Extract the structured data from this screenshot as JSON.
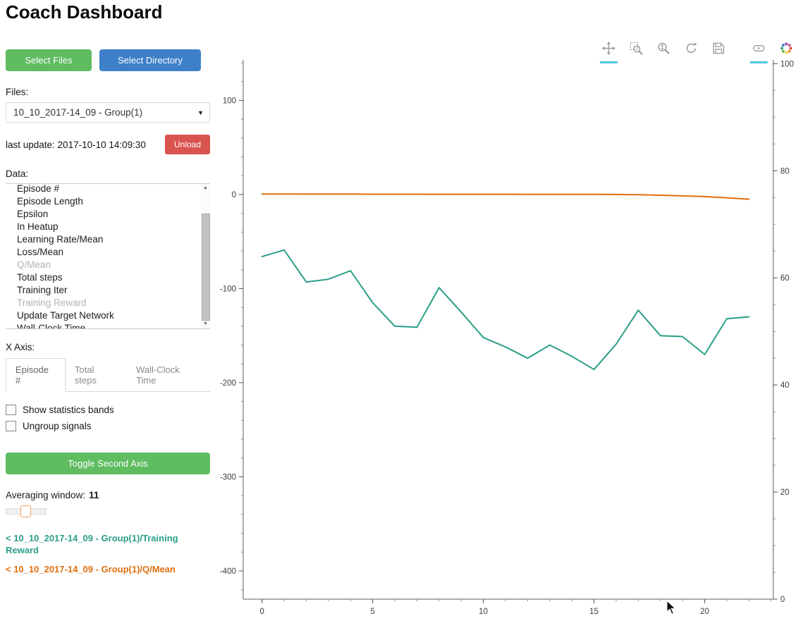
{
  "page": {
    "title": "Coach Dashboard"
  },
  "sidebar": {
    "buttons": {
      "select_files": "Select Files",
      "select_directory": "Select Directory",
      "unload": "Unload",
      "toggle_second_axis": "Toggle Second Axis"
    },
    "files": {
      "label": "Files:",
      "selected": "10_10_2017-14_09 - Group(1)"
    },
    "last_update": "last update: 2017-10-10 14:09:30",
    "data": {
      "label": "Data:",
      "items": [
        {
          "label": "Episode #",
          "dimmed": false
        },
        {
          "label": "Episode Length",
          "dimmed": false
        },
        {
          "label": "Epsilon",
          "dimmed": false
        },
        {
          "label": "In Heatup",
          "dimmed": false
        },
        {
          "label": "Learning Rate/Mean",
          "dimmed": false
        },
        {
          "label": "Loss/Mean",
          "dimmed": false
        },
        {
          "label": "Q/Mean",
          "dimmed": true
        },
        {
          "label": "Total steps",
          "dimmed": false
        },
        {
          "label": "Training Iter",
          "dimmed": false
        },
        {
          "label": "Training Reward",
          "dimmed": true
        },
        {
          "label": "Update Target Network",
          "dimmed": false
        },
        {
          "label": "Wall-Clock Time",
          "dimmed": false
        }
      ]
    },
    "x_axis": {
      "label": "X Axis:",
      "tabs": [
        {
          "label": "Episode #",
          "active": true
        },
        {
          "label": "Total steps",
          "active": false
        },
        {
          "label": "Wall-Clock Time",
          "active": false
        }
      ]
    },
    "options": [
      {
        "label": "Show statistics bands",
        "checked": false
      },
      {
        "label": "Ungroup signals",
        "checked": false
      }
    ],
    "averaging": {
      "label": "Averaging window:",
      "value": "11"
    },
    "legend": [
      {
        "label": "< 10_10_2017-14_09 - Group(1)/Training Reward",
        "color": "#2b9e88"
      },
      {
        "label": "< 10_10_2017-14_09 - Group(1)/Q/Mean",
        "color": "#e1700d"
      }
    ]
  },
  "toolbar": {
    "icons": [
      {
        "name": "pan-icon",
        "active": true
      },
      {
        "name": "box-zoom-icon",
        "active": false
      },
      {
        "name": "wheel-zoom-icon",
        "active": false
      },
      {
        "name": "reset-icon",
        "active": false
      },
      {
        "name": "save-icon",
        "active": false
      },
      {
        "name": "hover-icon",
        "active": true
      },
      {
        "name": "bokeh-logo",
        "active": false
      }
    ]
  },
  "chart_data": {
    "type": "line",
    "title": "",
    "x": [
      0,
      1,
      2,
      3,
      4,
      5,
      6,
      7,
      8,
      9,
      10,
      11,
      12,
      13,
      14,
      15,
      16,
      17,
      18,
      19,
      20,
      21,
      22
    ],
    "series": [
      {
        "name": "Training Reward",
        "color": "#2b9e88",
        "axis": "left",
        "values": [
          -66,
          -59,
          -93,
          -90,
          -81,
          -115,
          -140,
          -141,
          -99,
          -125,
          -152,
          -162,
          -174,
          -160,
          -172,
          -186,
          -159,
          -123,
          -150,
          -151,
          -170,
          -132,
          -130
        ]
      },
      {
        "name": "Q/Mean",
        "color": "#e1700d",
        "axis": "left",
        "values": [
          0.5,
          0.5,
          0.4,
          0.4,
          0.4,
          0.3,
          0.3,
          0.3,
          0.2,
          0.2,
          0.2,
          0.2,
          0.1,
          0.1,
          0.1,
          0.1,
          0,
          -0.3,
          -0.8,
          -1.5,
          -2.2,
          -3.5,
          -5
        ]
      }
    ],
    "x_axis": {
      "ticks": [
        0,
        5,
        10,
        15,
        20
      ],
      "range": [
        -0.85,
        23.1
      ],
      "minor_step": 1
    },
    "left_axis": {
      "ticks": [
        100,
        0,
        -100,
        -200,
        -300,
        -400
      ],
      "range": [
        -430,
        143
      ],
      "minor_step": 20
    },
    "right_axis": {
      "ticks": [
        100,
        80,
        60,
        40,
        20,
        0
      ],
      "range": [
        0,
        100.7
      ],
      "minor_step": 5
    },
    "grid": false,
    "legend_position": "external-left"
  }
}
